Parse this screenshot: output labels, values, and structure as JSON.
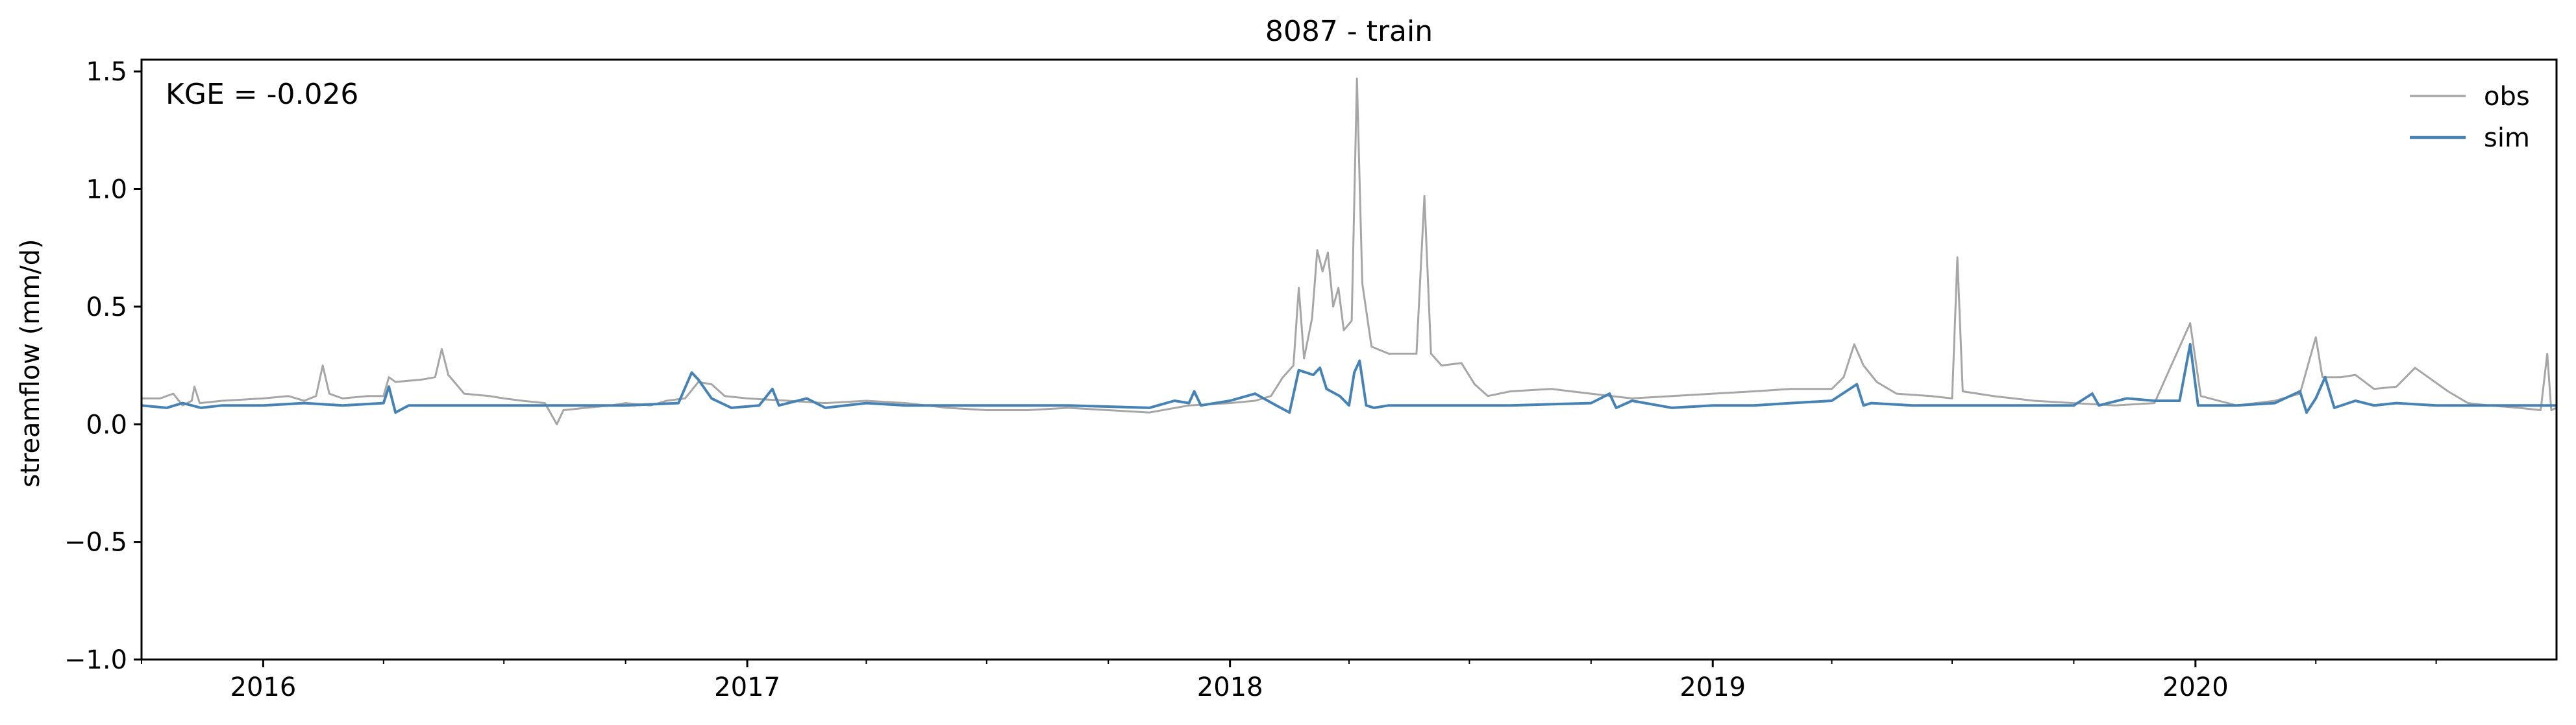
{
  "chart_data": {
    "type": "line",
    "title": "8087 - train",
    "xlabel": "",
    "ylabel": "streamflow (mm/d)",
    "xlim": [
      "2015-10-01",
      "2020-09-30"
    ],
    "ylim": [
      -1.0,
      1.55
    ],
    "yticks": [
      -1.0,
      -0.5,
      0.0,
      0.5,
      1.0,
      1.5
    ],
    "ytick_labels": [
      "−1.0",
      "−0.5",
      "0.0",
      "0.5",
      "1.0",
      "1.5"
    ],
    "xticks": [
      "2016-01-01",
      "2017-01-01",
      "2018-01-01",
      "2019-01-01",
      "2020-01-01"
    ],
    "xtick_labels": [
      "2016",
      "2017",
      "2018",
      "2019",
      "2020"
    ],
    "grid": false,
    "legend_position": "top-right",
    "annotation": "KGE = -0.026",
    "series": [
      {
        "name": "obs",
        "color": "#a6a6a6",
        "points": [
          [
            "2015-10-01",
            0.11
          ],
          [
            "2015-10-15",
            0.11
          ],
          [
            "2015-10-25",
            0.13
          ],
          [
            "2015-11-01",
            0.08
          ],
          [
            "2015-11-08",
            0.1
          ],
          [
            "2015-11-10",
            0.16
          ],
          [
            "2015-11-14",
            0.09
          ],
          [
            "2015-12-01",
            0.1
          ],
          [
            "2016-01-01",
            0.11
          ],
          [
            "2016-01-20",
            0.12
          ],
          [
            "2016-02-01",
            0.1
          ],
          [
            "2016-02-10",
            0.12
          ],
          [
            "2016-02-15",
            0.25
          ],
          [
            "2016-02-20",
            0.13
          ],
          [
            "2016-03-01",
            0.11
          ],
          [
            "2016-03-20",
            0.12
          ],
          [
            "2016-04-01",
            0.12
          ],
          [
            "2016-04-05",
            0.2
          ],
          [
            "2016-04-10",
            0.18
          ],
          [
            "2016-04-30",
            0.19
          ],
          [
            "2016-05-10",
            0.2
          ],
          [
            "2016-05-15",
            0.32
          ],
          [
            "2016-05-20",
            0.21
          ],
          [
            "2016-06-01",
            0.13
          ],
          [
            "2016-06-20",
            0.12
          ],
          [
            "2016-07-01",
            0.11
          ],
          [
            "2016-07-15",
            0.1
          ],
          [
            "2016-08-01",
            0.09
          ],
          [
            "2016-08-10",
            0.0
          ],
          [
            "2016-08-15",
            0.06
          ],
          [
            "2016-09-01",
            0.07
          ],
          [
            "2016-09-20",
            0.08
          ],
          [
            "2016-10-01",
            0.09
          ],
          [
            "2016-10-20",
            0.08
          ],
          [
            "2016-11-01",
            0.1
          ],
          [
            "2016-11-15",
            0.11
          ],
          [
            "2016-11-25",
            0.18
          ],
          [
            "2016-12-05",
            0.17
          ],
          [
            "2016-12-15",
            0.12
          ],
          [
            "2017-01-01",
            0.11
          ],
          [
            "2017-02-01",
            0.1
          ],
          [
            "2017-03-01",
            0.09
          ],
          [
            "2017-04-01",
            0.1
          ],
          [
            "2017-05-01",
            0.09
          ],
          [
            "2017-06-01",
            0.07
          ],
          [
            "2017-07-01",
            0.06
          ],
          [
            "2017-08-01",
            0.06
          ],
          [
            "2017-09-01",
            0.07
          ],
          [
            "2017-10-01",
            0.06
          ],
          [
            "2017-11-01",
            0.05
          ],
          [
            "2017-12-01",
            0.08
          ],
          [
            "2018-01-01",
            0.09
          ],
          [
            "2018-01-20",
            0.1
          ],
          [
            "2018-02-01",
            0.12
          ],
          [
            "2018-02-10",
            0.2
          ],
          [
            "2018-02-18",
            0.25
          ],
          [
            "2018-02-22",
            0.58
          ],
          [
            "2018-02-26",
            0.28
          ],
          [
            "2018-03-04",
            0.45
          ],
          [
            "2018-03-08",
            0.74
          ],
          [
            "2018-03-12",
            0.65
          ],
          [
            "2018-03-16",
            0.73
          ],
          [
            "2018-03-20",
            0.5
          ],
          [
            "2018-03-24",
            0.58
          ],
          [
            "2018-03-28",
            0.4
          ],
          [
            "2018-04-03",
            0.44
          ],
          [
            "2018-04-07",
            1.47
          ],
          [
            "2018-04-11",
            0.6
          ],
          [
            "2018-04-18",
            0.33
          ],
          [
            "2018-05-01",
            0.3
          ],
          [
            "2018-05-15",
            0.3
          ],
          [
            "2018-05-22",
            0.3
          ],
          [
            "2018-05-28",
            0.97
          ],
          [
            "2018-06-02",
            0.3
          ],
          [
            "2018-06-10",
            0.25
          ],
          [
            "2018-06-25",
            0.26
          ],
          [
            "2018-07-05",
            0.17
          ],
          [
            "2018-07-15",
            0.12
          ],
          [
            "2018-08-01",
            0.14
          ],
          [
            "2018-09-01",
            0.15
          ],
          [
            "2018-10-01",
            0.13
          ],
          [
            "2018-11-01",
            0.11
          ],
          [
            "2018-12-01",
            0.12
          ],
          [
            "2019-01-01",
            0.13
          ],
          [
            "2019-02-01",
            0.14
          ],
          [
            "2019-03-01",
            0.15
          ],
          [
            "2019-04-01",
            0.15
          ],
          [
            "2019-04-10",
            0.2
          ],
          [
            "2019-04-18",
            0.34
          ],
          [
            "2019-04-25",
            0.25
          ],
          [
            "2019-05-05",
            0.18
          ],
          [
            "2019-05-20",
            0.13
          ],
          [
            "2019-06-15",
            0.12
          ],
          [
            "2019-07-01",
            0.11
          ],
          [
            "2019-07-05",
            0.71
          ],
          [
            "2019-07-09",
            0.14
          ],
          [
            "2019-08-01",
            0.12
          ],
          [
            "2019-09-01",
            0.1
          ],
          [
            "2019-10-01",
            0.09
          ],
          [
            "2019-11-01",
            0.08
          ],
          [
            "2019-12-01",
            0.09
          ],
          [
            "2019-12-28",
            0.43
          ],
          [
            "2020-01-05",
            0.12
          ],
          [
            "2020-02-01",
            0.08
          ],
          [
            "2020-03-01",
            0.1
          ],
          [
            "2020-03-20",
            0.13
          ],
          [
            "2020-04-01",
            0.37
          ],
          [
            "2020-04-06",
            0.2
          ],
          [
            "2020-04-20",
            0.2
          ],
          [
            "2020-05-01",
            0.21
          ],
          [
            "2020-05-15",
            0.15
          ],
          [
            "2020-06-01",
            0.16
          ],
          [
            "2020-06-15",
            0.24
          ],
          [
            "2020-06-25",
            0.2
          ],
          [
            "2020-07-10",
            0.14
          ],
          [
            "2020-07-25",
            0.09
          ],
          [
            "2020-08-10",
            0.08
          ],
          [
            "2020-09-01",
            0.07
          ],
          [
            "2020-09-18",
            0.06
          ],
          [
            "2020-09-23",
            0.3
          ],
          [
            "2020-09-26",
            0.06
          ],
          [
            "2020-09-30",
            0.07
          ]
        ]
      },
      {
        "name": "sim",
        "color": "#4682b4",
        "points": [
          [
            "2015-10-01",
            0.08
          ],
          [
            "2015-10-20",
            0.07
          ],
          [
            "2015-11-01",
            0.09
          ],
          [
            "2015-11-15",
            0.07
          ],
          [
            "2015-12-01",
            0.08
          ],
          [
            "2016-01-01",
            0.08
          ],
          [
            "2016-02-01",
            0.09
          ],
          [
            "2016-03-01",
            0.08
          ],
          [
            "2016-04-01",
            0.09
          ],
          [
            "2016-04-05",
            0.16
          ],
          [
            "2016-04-10",
            0.05
          ],
          [
            "2016-04-20",
            0.08
          ],
          [
            "2016-05-15",
            0.08
          ],
          [
            "2016-06-01",
            0.08
          ],
          [
            "2016-08-01",
            0.08
          ],
          [
            "2016-10-01",
            0.08
          ],
          [
            "2016-11-10",
            0.09
          ],
          [
            "2016-11-20",
            0.22
          ],
          [
            "2016-11-25",
            0.19
          ],
          [
            "2016-12-05",
            0.11
          ],
          [
            "2016-12-20",
            0.07
          ],
          [
            "2017-01-10",
            0.08
          ],
          [
            "2017-01-20",
            0.15
          ],
          [
            "2017-01-25",
            0.08
          ],
          [
            "2017-02-15",
            0.11
          ],
          [
            "2017-03-01",
            0.07
          ],
          [
            "2017-04-01",
            0.09
          ],
          [
            "2017-05-01",
            0.08
          ],
          [
            "2017-07-01",
            0.08
          ],
          [
            "2017-09-01",
            0.08
          ],
          [
            "2017-11-01",
            0.07
          ],
          [
            "2017-11-20",
            0.1
          ],
          [
            "2017-12-01",
            0.09
          ],
          [
            "2017-12-05",
            0.14
          ],
          [
            "2017-12-10",
            0.08
          ],
          [
            "2018-01-01",
            0.1
          ],
          [
            "2018-01-20",
            0.13
          ],
          [
            "2018-02-05",
            0.08
          ],
          [
            "2018-02-15",
            0.05
          ],
          [
            "2018-02-22",
            0.23
          ],
          [
            "2018-03-05",
            0.21
          ],
          [
            "2018-03-10",
            0.24
          ],
          [
            "2018-03-15",
            0.15
          ],
          [
            "2018-03-25",
            0.12
          ],
          [
            "2018-04-01",
            0.08
          ],
          [
            "2018-04-05",
            0.22
          ],
          [
            "2018-04-09",
            0.27
          ],
          [
            "2018-04-14",
            0.08
          ],
          [
            "2018-04-20",
            0.07
          ],
          [
            "2018-05-01",
            0.08
          ],
          [
            "2018-06-01",
            0.08
          ],
          [
            "2018-08-01",
            0.08
          ],
          [
            "2018-10-01",
            0.09
          ],
          [
            "2018-10-15",
            0.13
          ],
          [
            "2018-10-20",
            0.07
          ],
          [
            "2018-11-01",
            0.1
          ],
          [
            "2018-12-01",
            0.07
          ],
          [
            "2019-01-01",
            0.08
          ],
          [
            "2019-02-01",
            0.08
          ],
          [
            "2019-03-01",
            0.09
          ],
          [
            "2019-04-01",
            0.1
          ],
          [
            "2019-04-20",
            0.17
          ],
          [
            "2019-04-25",
            0.08
          ],
          [
            "2019-05-01",
            0.09
          ],
          [
            "2019-06-01",
            0.08
          ],
          [
            "2019-08-01",
            0.08
          ],
          [
            "2019-10-01",
            0.08
          ],
          [
            "2019-10-15",
            0.13
          ],
          [
            "2019-10-20",
            0.08
          ],
          [
            "2019-11-10",
            0.11
          ],
          [
            "2019-12-01",
            0.1
          ],
          [
            "2019-12-20",
            0.1
          ],
          [
            "2019-12-28",
            0.34
          ],
          [
            "2020-01-03",
            0.08
          ],
          [
            "2020-02-01",
            0.08
          ],
          [
            "2020-03-01",
            0.09
          ],
          [
            "2020-03-20",
            0.14
          ],
          [
            "2020-03-25",
            0.05
          ],
          [
            "2020-04-01",
            0.11
          ],
          [
            "2020-04-08",
            0.2
          ],
          [
            "2020-04-15",
            0.07
          ],
          [
            "2020-05-01",
            0.1
          ],
          [
            "2020-05-15",
            0.08
          ],
          [
            "2020-06-01",
            0.09
          ],
          [
            "2020-07-01",
            0.08
          ],
          [
            "2020-09-01",
            0.08
          ],
          [
            "2020-09-30",
            0.08
          ]
        ]
      }
    ]
  }
}
